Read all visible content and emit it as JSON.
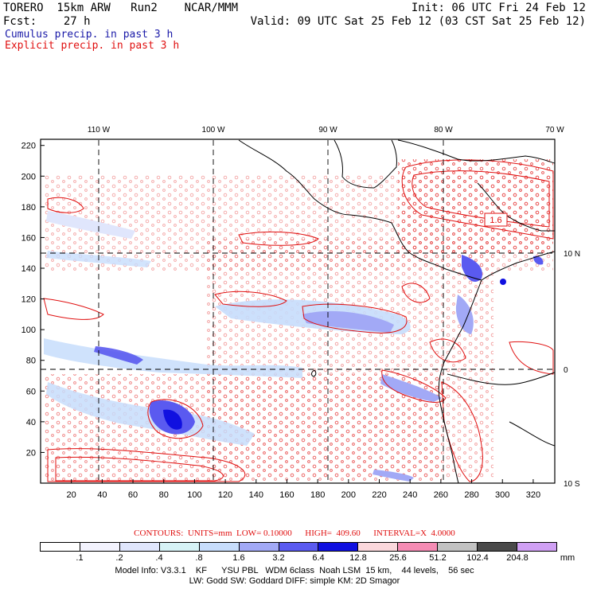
{
  "header": {
    "line1_left": "TORERO  15km ARW   Run2    NCAR/MMM",
    "line1_right": "Init: 06 UTC Fri 24 Feb 12",
    "line2_left": "Fcst:    27 h",
    "line2_right": "Valid: 09 UTC Sat 25 Feb 12 (03 CST Sat 25 Feb 12)",
    "cumulus_label": "Cumulus precip. in past 3 h",
    "explicit_label": "Explicit precip. in past 3 h"
  },
  "map": {
    "lon_labels": [
      "110 W",
      "100 W",
      "90 W",
      "80 W",
      "70 W"
    ],
    "lat_labels": [
      "10 N",
      "0",
      "10 S"
    ],
    "y_ticks": [
      "220",
      "200",
      "180",
      "160",
      "140",
      "120",
      "100",
      "80",
      "60",
      "40",
      "20"
    ],
    "x_ticks": [
      "20",
      "40",
      "60",
      "80",
      "100",
      "120",
      "140",
      "160",
      "180",
      "200",
      "220",
      "240",
      "260",
      "280",
      "300",
      "320"
    ],
    "contour_label": "1.6",
    "colors": {
      "contour": "#e01010",
      "grid": "#000000",
      "coast": "#000000"
    }
  },
  "legend": {
    "contours_text": "CONTOURS:  UNITS=mm  LOW= 0.10000      HIGH=  409.60      INTERVAL=X  4.0000",
    "bins": [
      ".1",
      ".2",
      ".4",
      ".8",
      "1.6",
      "3.2",
      "6.4",
      "12.8",
      "25.6",
      "51.2",
      "102.4",
      "204.8"
    ],
    "units": "mm",
    "colors": [
      "#ffffff",
      "#f2f2fd",
      "#e0e6fc",
      "#d6f2f6",
      "#c7ddfc",
      "#a2a9f6",
      "#5a5af0",
      "#1010e0",
      "#fbd8dc",
      "#f58cb4",
      "#c2c2c2",
      "#4a4a4a",
      "#d0a0f4"
    ]
  },
  "footer": {
    "line1": "Model Info: V3.3.1    KF      YSU PBL   WDM 6class  Noah LSM  15 km,    44 levels,    56 sec",
    "line2": "LW: Godd SW: Goddard DIFF: simple KM: 2D Smagor"
  }
}
